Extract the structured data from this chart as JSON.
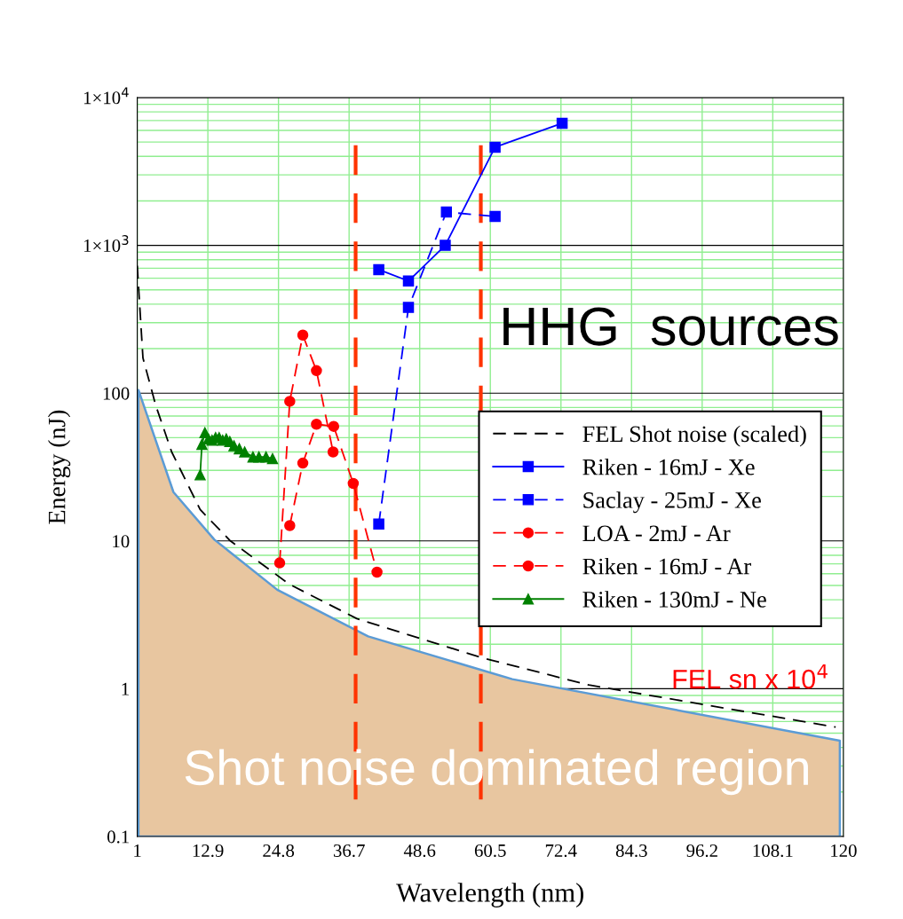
{
  "chart_data": {
    "type": "line",
    "xlabel": "Wavelength (nm)",
    "ylabel": "Energy (nJ)",
    "xlim": [
      1,
      120
    ],
    "xticks": [
      1,
      12.9,
      24.8,
      36.7,
      48.6,
      60.5,
      72.4,
      84.3,
      96.2,
      108.1,
      120
    ],
    "ylim": [
      0.1,
      10000
    ],
    "yticks": [
      0.1,
      1,
      10,
      100,
      {
        "value": 1000,
        "label": "1×10$^{3}$"
      },
      {
        "value": 10000,
        "label": "1×10$^{4}$"
      }
    ],
    "log": "y",
    "grid": true,
    "legend": "right",
    "series": [
      {
        "type": "area",
        "color": "#e8c6a0",
        "x": [
          1.2,
          7.1,
          14.0,
          24.6,
          39.9,
          64.2,
          119.4
        ],
        "values": [
          105,
          21.4,
          10.2,
          4.67,
          2.26,
          1.16,
          0.445
        ]
      },
      {
        "name": "FEL Shot noise (scaled)",
        "color": "#000000",
        "line_style": "dashed",
        "marker": "none",
        "x": [
          1,
          1.96,
          4.1,
          6.8,
          11.6,
          16.7,
          26.6,
          38,
          59.1,
          77.1,
          118.7
        ],
        "values": [
          727,
          173,
          83,
          40,
          16.3,
          10,
          5.1,
          2.98,
          1.62,
          1.06,
          0.55
        ]
      },
      {
        "name": "Riken - 16mJ - Xe",
        "color": "#0000ff",
        "line_style": "solid",
        "marker": "square",
        "x": [
          41.7,
          46.7,
          52.9,
          61.3,
          72.6
        ],
        "values": [
          686,
          574,
          1000,
          4620,
          6700
        ]
      },
      {
        "name": "Saclay - 25mJ - Xe",
        "color": "#0000ff",
        "line_style": "dashed",
        "marker": "square",
        "x": [
          41.7,
          46.7,
          53.1,
          61.3
        ],
        "values": [
          13,
          380,
          1680,
          1570
        ]
      },
      {
        "name": "LOA - 2mJ - Ar",
        "color": "#ff0000",
        "line_style": "dashed",
        "marker": "circle",
        "x": [
          26.7,
          28.9,
          31.2,
          34.1,
          37.4,
          41.4
        ],
        "values": [
          12.7,
          33.6,
          61.6,
          59.6,
          24.5,
          6.15
        ]
      },
      {
        "name": "Riken - 16mJ - Ar",
        "color": "#ff0000",
        "line_style": "dashed",
        "marker": "circle",
        "x": [
          25.0,
          26.7,
          28.9,
          31.2,
          34.0
        ],
        "values": [
          7.1,
          88,
          247,
          142,
          40
        ]
      },
      {
        "name": "Riken - 130mJ - Ne",
        "color": "#008000",
        "line_style": "solid",
        "marker": "triangle",
        "x": [
          11.6,
          11.9,
          12.4,
          13.0,
          13.6,
          14.2,
          14.8,
          15.4,
          16.0,
          16.6,
          17.3,
          18.2,
          19.1,
          20.5,
          21.5,
          22.7,
          23.8
        ],
        "values": [
          28,
          45,
          54,
          49,
          48,
          50,
          50,
          48,
          49,
          47,
          44,
          42,
          40,
          37,
          37,
          37,
          36
        ]
      }
    ],
    "ref_lines": [
      {
        "axis": "x",
        "value": 37.8,
        "color": "#ff3300",
        "line_style": "dashed"
      },
      {
        "axis": "x",
        "value": 58.9,
        "color": "#ff3300",
        "line_style": "dashed"
      }
    ],
    "annotations": [
      "HHG  sources",
      "FEL sn x 10$^{4}$",
      "Shot noise dominated region"
    ]
  }
}
